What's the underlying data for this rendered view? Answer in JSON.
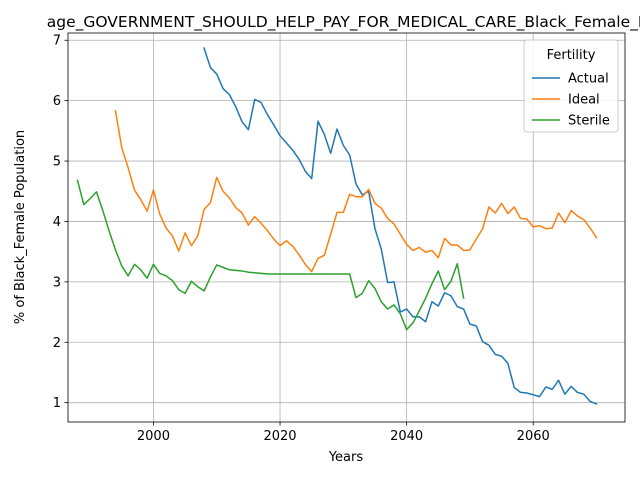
{
  "chart_data": {
    "type": "line",
    "title": "age_GOVERNMENT_SHOULD_HELP_PAY_FOR_MEDICAL_CARE_Black_Female_P",
    "xlabel": "Years",
    "ylabel": "% of Black_Female Population",
    "xlim": [
      1986.5,
      2074.5
    ],
    "ylim": [
      0.68,
      7.12
    ],
    "xticks": [
      2000,
      2020,
      2040,
      2060
    ],
    "yticks": [
      1,
      2,
      3,
      4,
      5,
      6,
      7
    ],
    "grid": true,
    "legend": {
      "title": "Fertility",
      "position": "top-right"
    },
    "series": [
      {
        "name": "Actual",
        "color": "#1f77b4",
        "x": [
          2008,
          2009,
          2010,
          2011,
          2012,
          2013,
          2014,
          2015,
          2016,
          2017,
          2018,
          2019,
          2020,
          2021,
          2022,
          2023,
          2024,
          2025,
          2026,
          2027,
          2028,
          2029,
          2030,
          2031,
          2032,
          2033,
          2034,
          2035,
          2036,
          2037,
          2038,
          2039,
          2040,
          2041,
          2042,
          2043,
          2044,
          2045,
          2046,
          2047,
          2048,
          2049,
          2050,
          2051,
          2052,
          2053,
          2054,
          2055,
          2056,
          2057,
          2058,
          2059,
          2060,
          2061,
          2062,
          2063,
          2064,
          2065,
          2066,
          2067,
          2068,
          2069,
          2070
        ],
        "values": [
          6.87,
          6.55,
          6.44,
          6.2,
          6.1,
          5.9,
          5.65,
          5.52,
          6.02,
          5.97,
          5.77,
          5.6,
          5.42,
          5.3,
          5.18,
          5.03,
          4.83,
          4.71,
          5.66,
          5.44,
          5.13,
          5.53,
          5.26,
          5.1,
          4.62,
          4.44,
          4.5,
          3.88,
          3.54,
          2.99,
          3.0,
          2.5,
          2.55,
          2.42,
          2.42,
          2.34,
          2.67,
          2.6,
          2.82,
          2.77,
          2.59,
          2.55,
          2.3,
          2.27,
          2.01,
          1.95,
          1.8,
          1.77,
          1.65,
          1.25,
          1.17,
          1.16,
          1.13,
          1.1,
          1.26,
          1.22,
          1.37,
          1.14,
          1.27,
          1.17,
          1.14,
          1.02,
          0.98
        ]
      },
      {
        "name": "Ideal",
        "color": "#ff7f0e",
        "x": [
          1994,
          1995,
          1996,
          1997,
          1998,
          1999,
          2000,
          2001,
          2002,
          2003,
          2004,
          2005,
          2006,
          2007,
          2008,
          2009,
          2010,
          2011,
          2012,
          2013,
          2014,
          2015,
          2016,
          2017,
          2018,
          2019,
          2020,
          2021,
          2022,
          2023,
          2024,
          2025,
          2026,
          2027,
          2028,
          2029,
          2030,
          2031,
          2032,
          2033,
          2034,
          2035,
          2036,
          2037,
          2038,
          2039,
          2040,
          2041,
          2042,
          2043,
          2044,
          2045,
          2046,
          2047,
          2048,
          2049,
          2050,
          2051,
          2052,
          2053,
          2054,
          2055,
          2056,
          2057,
          2058,
          2059,
          2060,
          2061,
          2062,
          2063,
          2064,
          2065,
          2066,
          2067,
          2068,
          2069,
          2070
        ],
        "values": [
          5.83,
          5.22,
          4.89,
          4.52,
          4.36,
          4.17,
          4.52,
          4.12,
          3.89,
          3.76,
          3.51,
          3.81,
          3.6,
          3.76,
          4.2,
          4.31,
          4.73,
          4.5,
          4.39,
          4.23,
          4.14,
          3.94,
          4.08,
          3.97,
          3.85,
          3.71,
          3.6,
          3.68,
          3.59,
          3.45,
          3.29,
          3.17,
          3.39,
          3.44,
          3.79,
          4.15,
          4.15,
          4.45,
          4.41,
          4.41,
          4.53,
          4.3,
          4.22,
          4.05,
          3.96,
          3.79,
          3.62,
          3.52,
          3.57,
          3.49,
          3.52,
          3.4,
          3.72,
          3.61,
          3.61,
          3.52,
          3.53,
          3.71,
          3.88,
          4.24,
          4.14,
          4.3,
          4.13,
          4.24,
          4.05,
          4.04,
          3.91,
          3.93,
          3.88,
          3.89,
          4.14,
          3.98,
          4.18,
          4.09,
          4.03,
          3.89,
          3.73
        ]
      },
      {
        "name": "Sterile",
        "color": "#2ca02c",
        "x": [
          1988,
          1989,
          1990,
          1991,
          1992,
          1993,
          1994,
          1995,
          1996,
          1997,
          1998,
          1999,
          2000,
          2001,
          2002,
          2003,
          2004,
          2005,
          2006,
          2007,
          2008,
          2009,
          2010,
          2011,
          2012,
          2013,
          2014,
          2015,
          2016,
          2017,
          2018,
          2019,
          2020,
          2021,
          2022,
          2023,
          2024,
          2025,
          2026,
          2027,
          2028,
          2029,
          2030,
          2031,
          2032,
          2033,
          2034,
          2035,
          2036,
          2037,
          2038,
          2039,
          2040,
          2041,
          2042,
          2043,
          2044,
          2045,
          2046,
          2047,
          2048,
          2049
        ],
        "values": [
          4.68,
          4.28,
          4.38,
          4.49,
          4.18,
          3.84,
          3.53,
          3.26,
          3.1,
          3.29,
          3.2,
          3.06,
          3.29,
          3.14,
          3.1,
          3.02,
          2.87,
          2.81,
          3.01,
          2.92,
          2.85,
          3.08,
          3.28,
          3.24,
          3.2,
          3.19,
          3.18,
          3.16,
          3.15,
          3.14,
          3.13,
          3.13,
          3.13,
          3.13,
          3.13,
          3.13,
          3.13,
          3.13,
          3.13,
          3.13,
          3.13,
          3.13,
          3.13,
          3.13,
          2.74,
          2.81,
          3.02,
          2.89,
          2.67,
          2.55,
          2.62,
          2.47,
          2.21,
          2.32,
          2.52,
          2.73,
          2.97,
          3.18,
          2.87,
          3.01,
          3.3,
          2.73
        ]
      }
    ]
  }
}
